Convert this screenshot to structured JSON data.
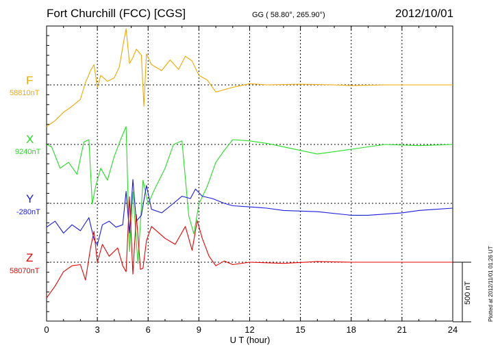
{
  "header": {
    "title": "Fort Churchill (FCC)  [CGS]",
    "coords": "GG ( 58.80°, 265.90°)",
    "date": "2012/10/01"
  },
  "footer": {
    "plotted": "Plotted at 2012/11/01 01:26 UT",
    "scale_label": "500 nT"
  },
  "chart_data": {
    "type": "line",
    "xlabel": "U T (hour)",
    "xlim": [
      0,
      24
    ],
    "xticks": [
      0,
      3,
      6,
      9,
      12,
      15,
      18,
      21,
      24
    ],
    "scale_bar_nT": 500,
    "series": [
      {
        "name": "F",
        "baseline": "58810nT",
        "color": "#f0a800",
        "x": [
          0,
          0.5,
          1,
          1.5,
          2,
          2.3,
          2.6,
          2.8,
          3.0,
          3.2,
          3.6,
          4.0,
          4.3,
          4.6,
          4.7,
          4.9,
          5.1,
          5.3,
          5.6,
          5.75,
          5.9,
          6.2,
          6.8,
          7.3,
          7.8,
          8.2,
          8.6,
          9.0,
          9.5,
          10.0,
          10.5,
          11,
          12,
          13,
          15,
          17,
          18,
          20,
          22,
          24
        ],
        "y": [
          -350,
          -300,
          -230,
          -180,
          -120,
          20,
          120,
          170,
          -20,
          80,
          30,
          60,
          150,
          400,
          470,
          180,
          230,
          300,
          250,
          -180,
          260,
          170,
          120,
          210,
          130,
          240,
          200,
          80,
          40,
          -60,
          -40,
          -20,
          10,
          0,
          5,
          0,
          -5,
          0,
          0,
          0
        ]
      },
      {
        "name": "X",
        "baseline": "9240nT",
        "color": "#22dd22",
        "x": [
          0,
          0.3,
          0.8,
          1.3,
          1.8,
          2.2,
          2.5,
          2.7,
          2.9,
          3.2,
          3.6,
          4.0,
          4.4,
          4.7,
          4.9,
          5.1,
          5.4,
          5.7,
          6.0,
          6.3,
          7.0,
          7.5,
          8.0,
          8.4,
          8.7,
          9.0,
          9.5,
          10,
          10.5,
          11,
          12,
          13,
          15,
          16,
          18,
          20,
          22,
          24
        ],
        "y": [
          0,
          -20,
          -200,
          -150,
          -250,
          20,
          40,
          -500,
          -350,
          -200,
          -300,
          -100,
          50,
          150,
          -900,
          -400,
          -1000,
          -300,
          -500,
          -400,
          -200,
          0,
          30,
          -600,
          -750,
          -500,
          -350,
          -150,
          -50,
          40,
          30,
          10,
          -50,
          -80,
          -40,
          0,
          -10,
          0
        ]
      },
      {
        "name": "Y",
        "baseline": "-280nT",
        "color": "#1a1adb",
        "x": [
          0,
          0.5,
          1,
          1.5,
          2,
          2.5,
          2.8,
          3.0,
          3.3,
          3.7,
          4.1,
          4.5,
          4.7,
          4.9,
          5.1,
          5.3,
          5.6,
          5.9,
          6.2,
          6.8,
          7.5,
          8.0,
          8.5,
          8.8,
          9.2,
          9.8,
          10.5,
          11,
          12,
          13,
          14,
          16,
          18,
          19,
          21,
          22,
          24
        ],
        "y": [
          -200,
          -150,
          -250,
          -180,
          -230,
          -120,
          -300,
          -350,
          -180,
          -150,
          -200,
          -180,
          100,
          -250,
          200,
          -150,
          -100,
          150,
          -50,
          -80,
          0,
          60,
          40,
          120,
          60,
          40,
          0,
          -20,
          -30,
          -40,
          -60,
          -70,
          -100,
          -100,
          -80,
          -60,
          -40
        ]
      },
      {
        "name": "Z",
        "baseline": "58070nT",
        "color": "#e80000",
        "x": [
          0,
          0.5,
          1,
          1.5,
          2,
          2.3,
          2.6,
          2.8,
          3.0,
          3.3,
          3.7,
          4.2,
          4.5,
          4.7,
          4.9,
          5.1,
          5.3,
          5.55,
          5.7,
          5.9,
          6.2,
          7.0,
          7.6,
          8.2,
          8.6,
          8.9,
          9.2,
          9.6,
          10,
          10.5,
          11,
          12,
          14,
          16,
          18,
          20,
          22,
          24
        ],
        "y": [
          -300,
          -200,
          -80,
          -30,
          -20,
          -150,
          120,
          260,
          0,
          150,
          50,
          120,
          -30,
          -80,
          550,
          -100,
          400,
          -60,
          -50,
          180,
          300,
          200,
          150,
          300,
          100,
          350,
          200,
          50,
          -30,
          10,
          -20,
          0,
          -10,
          5,
          0,
          0,
          0,
          0
        ]
      }
    ]
  }
}
